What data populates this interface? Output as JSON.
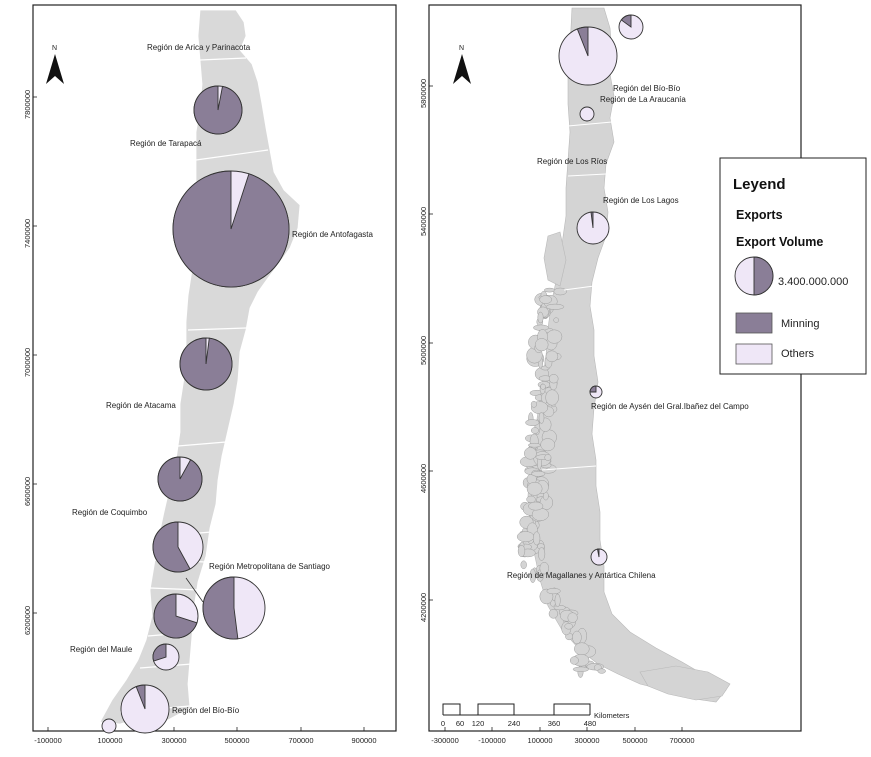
{
  "colors": {
    "mining": "#8a7e97",
    "others": "#efe7f7",
    "land": "#d9d9d9",
    "outline": "#333333"
  },
  "left_map": {
    "north_label": "N",
    "y_ticks": [
      "7800000",
      "7400000",
      "7000000",
      "6600000",
      "6200000"
    ],
    "x_ticks": [
      "-100000",
      "100000",
      "300000",
      "500000",
      "700000",
      "900000"
    ],
    "regions": [
      {
        "id": "arica",
        "label": "Región de Arica y Parinacota",
        "mining_share": null
      },
      {
        "id": "tarapaca",
        "label": "Región de Tarapacá",
        "mining_share": 0.97
      },
      {
        "id": "antofagasta",
        "label": "Región de Antofagasta",
        "mining_share": 0.95
      },
      {
        "id": "atacama",
        "label": "Región de Atacama",
        "mining_share": 0.98
      },
      {
        "id": "coquimbo",
        "label": "Región de Coquimbo",
        "mining_share": 0.92
      },
      {
        "id": "valparaiso",
        "label": "",
        "mining_share": 0.58
      },
      {
        "id": "santiago",
        "label": "Región Metropolitana de Santiago",
        "mining_share": 0.52
      },
      {
        "id": "ohiggins",
        "label": "",
        "mining_share": 0.7
      },
      {
        "id": "maule",
        "label": "Región del Maule",
        "mining_share": 0.3
      },
      {
        "id": "biobio",
        "label": "Región del Bío-Bío",
        "mining_share": 0.06
      },
      {
        "id": "nuble",
        "label": "",
        "mining_share": 0.0
      }
    ]
  },
  "right_map": {
    "north_label": "N",
    "y_ticks": [
      "5800000",
      "5400000",
      "5000000",
      "4600000",
      "4200000"
    ],
    "x_ticks": [
      "-300000",
      "-100000",
      "100000",
      "300000",
      "500000",
      "700000"
    ],
    "regions": [
      {
        "id": "biobio_r",
        "label": "Región del Bío-Bío",
        "mining_share": 0.06
      },
      {
        "id": "araucania",
        "label": "Región de La Araucanía",
        "mining_share": 0.0
      },
      {
        "id": "rios",
        "label": "Región de Los Ríos",
        "mining_share": null
      },
      {
        "id": "lagos",
        "label": "Región de Los Lagos",
        "mining_share": 0.02
      },
      {
        "id": "aysen",
        "label": "Región de Aysén del Gral.Ibañez del Campo",
        "mining_share": 0.25
      },
      {
        "id": "magallanes",
        "label": "Región de Magallanes y Antártica Chilena",
        "mining_share": 0.03
      },
      {
        "id": "top_small",
        "label": "",
        "mining_share": 0.15
      }
    ],
    "scale_bar": {
      "ticks": [
        "0",
        "60",
        "120",
        "240",
        "360",
        "480"
      ],
      "unit": "Kilometers"
    }
  },
  "legend": {
    "title": "Leyend",
    "subtitle": "Exports",
    "size_heading": "Export Volume",
    "size_value": "3.400.000.000",
    "items": [
      {
        "label": "Minning",
        "color": "#8a7e97"
      },
      {
        "label": "Others",
        "color": "#efe7f7"
      }
    ]
  }
}
